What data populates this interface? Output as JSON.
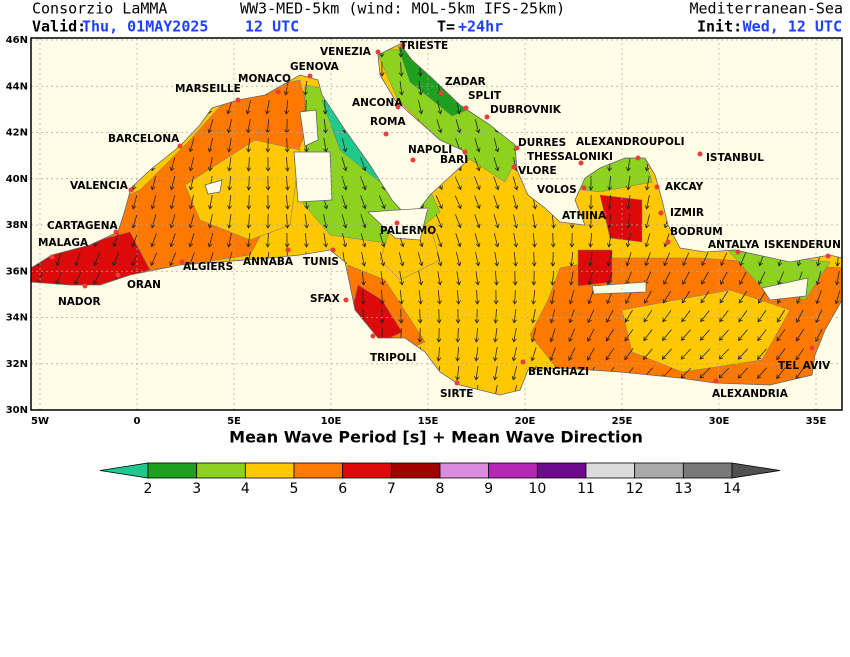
{
  "header": {
    "source": "Consorzio LaMMA",
    "model": "WW3-MED-5km (wind: MOL-5km IFS-25km)",
    "region": "Mediterranean-Sea",
    "valid_label": "Valid:",
    "valid_date": "Thu, 01MAY2025",
    "valid_time": "12 UTC",
    "lead_label": "T=",
    "lead_value": "+24hr",
    "init_label": "Init:",
    "init_value": "Wed, 12 UTC"
  },
  "map": {
    "lat_ticks": [
      {
        "value": 30,
        "label": "30N"
      },
      {
        "value": 32,
        "label": "32N"
      },
      {
        "value": 34,
        "label": "34N"
      },
      {
        "value": 36,
        "label": "36N"
      },
      {
        "value": 38,
        "label": "38N"
      },
      {
        "value": 40,
        "label": "40N"
      },
      {
        "value": 42,
        "label": "42N"
      },
      {
        "value": 44,
        "label": "44N"
      },
      {
        "value": 46,
        "label": "46N"
      }
    ],
    "lon_ticks": [
      {
        "value": -5,
        "label": "5W"
      },
      0,
      {
        "value": 5,
        "label": "5E"
      },
      {
        "value": 10,
        "label": "10E"
      },
      {
        "value": 15,
        "label": "15E"
      },
      {
        "value": 20,
        "label": "20E"
      },
      {
        "value": 25,
        "label": "25E"
      },
      {
        "value": 30,
        "label": "30E"
      },
      {
        "value": 35,
        "label": "35E"
      }
    ],
    "cities": [
      "VENEZIA",
      "TRIESTE",
      "GENOVA",
      "MONACO",
      "MARSEILLE",
      "ZADAR",
      "SPLIT",
      "ANCONA",
      "DUBROVNIK",
      "ROMA",
      "BARCELONA",
      "DURRES",
      "ALEXANDROUPOLI",
      "NAPOLI",
      "THESSALONIKI",
      "ISTANBUL",
      "BARI",
      "VALENCIA",
      "VLORE",
      "VOLOS",
      "AKCAY",
      "ATHINA",
      "IZMIR",
      "CARTAGENA",
      "PALERMO",
      "BODRUM",
      "MALAGA",
      "ANTALYA",
      "ISKENDERUN",
      "ALGIERS",
      "ANNABA",
      "TUNIS",
      "ORAN",
      "SFAX",
      "NADOR",
      "TRIPOLI",
      "TEL AVIV",
      "BENGHAZI",
      "SIRTE",
      "ALEXANDRIA"
    ],
    "title": "Mean Wave Period [s] + Mean Wave Direction"
  },
  "colorbar": {
    "levels": [
      2,
      3,
      4,
      5,
      6,
      7,
      8,
      9,
      10,
      11,
      12,
      13,
      14
    ],
    "colors": [
      "#1fc88c",
      "#1ea01e",
      "#8cd21e",
      "#ffc800",
      "#ff7800",
      "#dc0a0a",
      "#a00000",
      "#dc8cdc",
      "#b428b4",
      "#6e0a8c",
      "#dcdcdc",
      "#aaaaaa",
      "#787878",
      "#505050"
    ]
  }
}
